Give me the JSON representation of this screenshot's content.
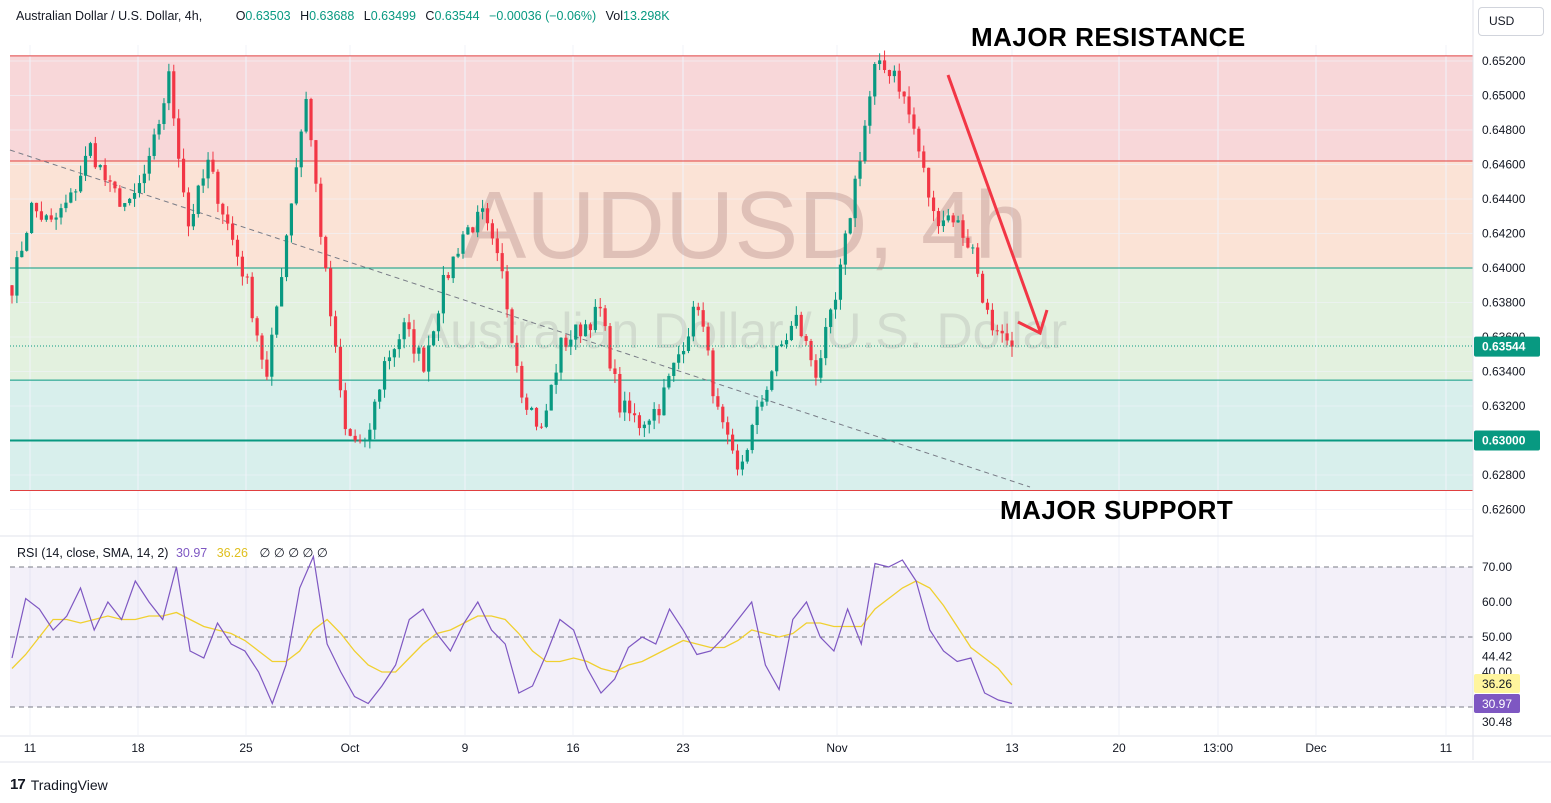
{
  "header": {
    "symbol_label": "Australian Dollar / U.S. Dollar, 4h,",
    "open_key": "O",
    "open": "0.63503",
    "high_key": "H",
    "high": "0.63688",
    "low_key": "L",
    "low": "0.63499",
    "close_key": "C",
    "close": "0.63544",
    "change": "−0.00036 (−0.06%)",
    "vol_key": "Vol",
    "vol": "13.298K"
  },
  "currency_button": "USD",
  "watermark": {
    "ticker": "AUDUSD, 4h",
    "name": "Australian Dollar / U.S. Dollar"
  },
  "annotations": {
    "resistance": "MAJOR RESISTANCE",
    "support": "MAJOR SUPPORT"
  },
  "rsi_header": {
    "label": "RSI (14, close, SMA, 14, 2)",
    "rsi_value": "30.97",
    "ma_value": "36.26",
    "extras": "∅ ∅ ∅ ∅ ∅"
  },
  "price_badges": {
    "last": "0.63544",
    "level": "0.63000"
  },
  "rsi_badges": {
    "ma": "36.26",
    "rsi": "30.97"
  },
  "branding": "TradingView",
  "colors": {
    "up": "#089981",
    "down": "#f23645",
    "rsi": "#7e57c2",
    "rsi_ma": "#f0d030",
    "zone_red": "#f8d7d9",
    "zone_orange": "#fbe3d6",
    "zone_green": "#e3f1df",
    "zone_teal": "#d8efec"
  },
  "chart_data": [
    {
      "type": "candlestick",
      "title": "Australian Dollar / U.S. Dollar, 4h",
      "x_ticks": [
        "11",
        "18",
        "25",
        "Oct",
        "9",
        "16",
        "23",
        "Nov",
        "13",
        "20",
        "13:00",
        "Dec",
        "11"
      ],
      "y_ticks": [
        "0.65200",
        "0.65000",
        "0.64800",
        "0.64600",
        "0.64400",
        "0.64200",
        "0.64000",
        "0.63800",
        "0.63600",
        "0.63400",
        "0.63200",
        "0.63000",
        "0.62800",
        "0.62600"
      ],
      "ylim": [
        0.6254,
        0.6526
      ],
      "zones": [
        {
          "from": 0.64,
          "to": 0.6523,
          "split": 0.6462,
          "label": "resistance zone"
        },
        {
          "from": 0.6271,
          "to": 0.64,
          "split": 0.6335,
          "label": "support zone"
        }
      ],
      "levels": [
        0.6523,
        0.6462,
        0.64,
        0.6335,
        0.63,
        0.6271
      ],
      "last_price": 0.63544,
      "anchors": [
        [
          "Sep 11",
          0.639
        ],
        [
          "Sep 12",
          0.6435
        ],
        [
          "Sep 13",
          0.6425
        ],
        [
          "Sep 14",
          0.644
        ],
        [
          "Sep 15",
          0.647
        ],
        [
          "Sep 18",
          0.6445
        ],
        [
          "Sep 19",
          0.6435
        ],
        [
          "Sep 20",
          0.646
        ],
        [
          "Sep 21",
          0.651
        ],
        [
          "Sep 22",
          0.6425
        ],
        [
          "Sep 25",
          0.646
        ],
        [
          "Sep 26",
          0.6425
        ],
        [
          "Sep 27",
          0.639
        ],
        [
          "Sep 28",
          0.6335
        ],
        [
          "Sep 29",
          0.642
        ],
        [
          "Sep 30",
          0.65
        ],
        [
          "Oct 2",
          0.6395
        ],
        [
          "Oct 3",
          0.6305
        ],
        [
          "Oct 4",
          0.6295
        ],
        [
          "Oct 5",
          0.6345
        ],
        [
          "Oct 6",
          0.6365
        ],
        [
          "Oct 9",
          0.6345
        ],
        [
          "Oct 10",
          0.639
        ],
        [
          "Oct 11",
          0.642
        ],
        [
          "Oct 12",
          0.643
        ],
        [
          "Oct 13",
          0.6395
        ],
        [
          "Oct 15",
          0.633
        ],
        [
          "Oct 16",
          0.6305
        ],
        [
          "Oct 17",
          0.6355
        ],
        [
          "Oct 18",
          0.6365
        ],
        [
          "Oct 19",
          0.6375
        ],
        [
          "Oct 20",
          0.632
        ],
        [
          "Oct 22",
          0.631
        ],
        [
          "Oct 23",
          0.632
        ],
        [
          "Oct 24",
          0.635
        ],
        [
          "Oct 25",
          0.638
        ],
        [
          "Oct 26",
          0.6315
        ],
        [
          "Oct 27",
          0.628
        ],
        [
          "Oct 28",
          0.6315
        ],
        [
          "Oct 30",
          0.635
        ],
        [
          "Oct 31",
          0.637
        ],
        [
          "Nov 1",
          0.634
        ],
        [
          "Nov 2",
          0.638
        ],
        [
          "Nov 3",
          0.645
        ],
        [
          "Nov 4",
          0.6515
        ],
        [
          "Nov 5",
          0.6515
        ],
        [
          "Nov 6",
          0.648
        ],
        [
          "Nov 7",
          0.643
        ],
        [
          "Nov 8",
          0.643
        ],
        [
          "Nov 9",
          0.641
        ],
        [
          "Nov 10",
          0.636
        ],
        [
          "Nov 13",
          0.63544
        ]
      ]
    },
    {
      "type": "line",
      "title": "RSI (14, close, SMA, 14, 2)",
      "y_ticks": [
        "70.00",
        "60.00",
        "50.00",
        "44.42",
        "40.00",
        "30.48"
      ],
      "ylim": [
        28,
        74
      ],
      "bands": [
        70,
        50,
        30
      ],
      "series": [
        {
          "name": "RSI",
          "values": [
            44,
            61,
            58,
            52,
            56,
            64,
            52,
            60,
            55,
            66,
            60,
            55,
            70,
            46,
            44,
            54,
            48,
            46,
            40,
            31,
            42,
            64,
            73,
            48,
            40,
            33,
            31,
            36,
            42,
            55,
            58,
            51,
            46,
            54,
            60,
            52,
            48,
            34,
            36,
            45,
            55,
            52,
            41,
            34,
            38,
            47,
            50,
            48,
            58,
            52,
            45,
            46,
            50,
            55,
            60,
            42,
            35,
            55,
            60,
            50,
            46,
            58,
            48,
            71,
            70,
            72,
            66,
            52,
            46,
            43,
            44,
            34,
            32,
            31
          ]
        },
        {
          "name": "RSI-based MA",
          "values": [
            41,
            45,
            50,
            55,
            55,
            54,
            55,
            56,
            55,
            55,
            56,
            56,
            57,
            55,
            53,
            52,
            51,
            49,
            46,
            43,
            43,
            46,
            52,
            55,
            51,
            46,
            42,
            40,
            40,
            44,
            48,
            51,
            52,
            54,
            56,
            56,
            55,
            51,
            46,
            43,
            43,
            44,
            43,
            41,
            40,
            42,
            43,
            45,
            47,
            49,
            48,
            47,
            47,
            49,
            52,
            51,
            50,
            51,
            54,
            54,
            53,
            53,
            53,
            58,
            61,
            64,
            66,
            64,
            59,
            53,
            47,
            44,
            41,
            36.26
          ]
        }
      ]
    }
  ]
}
